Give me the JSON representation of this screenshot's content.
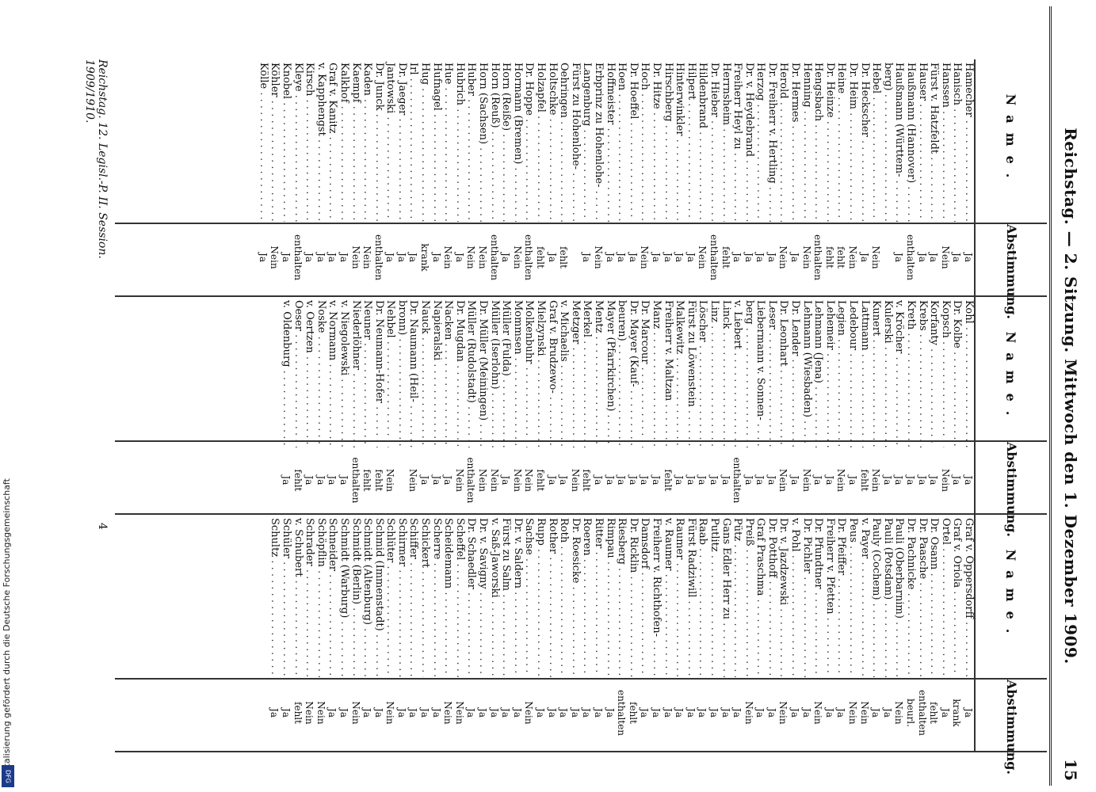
{
  "header": {
    "title": "Reichstag. — 2. Sitzung. Mittwoch den 1. Dezember 1909.",
    "page_number": "15"
  },
  "columns": {
    "name_header": "Name.",
    "vote_header": "Abstimmung."
  },
  "col1": [
    {
      "name": "Hamecher",
      "vote": "Ja"
    },
    {
      "name": "Hanisch",
      "vote": "Ja"
    },
    {
      "name": "Hanssen",
      "vote": "Nein"
    },
    {
      "name": "Fürst v. Hatzfeldt",
      "vote": "Ja"
    },
    {
      "name": "Hauser",
      "vote": "Ja"
    },
    {
      "name": "Haußmann (Hannover)",
      "vote": "enthalten"
    },
    {
      "name": "Haußmann (Württem-",
      "vote": "Ja"
    },
    {
      "name": "berg)",
      "vote": ""
    },
    {
      "name": "Hebel",
      "vote": "Nein"
    },
    {
      "name": "Dr. Heckscher",
      "vote": "Ja"
    },
    {
      "name": "Dr. Heim",
      "vote": "Nein"
    },
    {
      "name": "Heine",
      "vote": "fehlt"
    },
    {
      "name": "Dr. Heinze",
      "vote": "fehlt"
    },
    {
      "name": "Hengsbach",
      "vote": "enthalten"
    },
    {
      "name": "Henning",
      "vote": "Nein"
    },
    {
      "name": "Dr. Hermes",
      "vote": "Ja"
    },
    {
      "name": "Herold",
      "vote": "Nein"
    },
    {
      "name": "Dr. Freiherr v. Hertling",
      "vote": "Ja"
    },
    {
      "name": "Herzog",
      "vote": "Ja"
    },
    {
      "name": "Dr. v. Heydebrand",
      "vote": "Ja"
    },
    {
      "name": "Freiherr Heyl zu",
      "vote": "Ja"
    },
    {
      "name": "Herrnsheim",
      "vote": "fehlt"
    },
    {
      "name": "Dr. Hieber",
      "vote": "enthalten"
    },
    {
      "name": "Hildenbrand",
      "vote": "Nein"
    },
    {
      "name": "Hilpert",
      "vote": "Ja"
    },
    {
      "name": "Hinterwinkler",
      "vote": "Ja"
    },
    {
      "name": "Hirschberg",
      "vote": "Ja"
    },
    {
      "name": "Dr. Hitze",
      "vote": "Ja"
    },
    {
      "name": "Hoch",
      "vote": "Nein"
    },
    {
      "name": "Dr. Hoeffel",
      "vote": "Ja"
    },
    {
      "name": "Hoen",
      "vote": "Ja"
    },
    {
      "name": "Hoffmeister",
      "vote": "Ja"
    },
    {
      "name": "Erbprinz zu Hohenlohe-",
      "vote": "Nein"
    },
    {
      "name": "Langenburg",
      "vote": "Ja"
    },
    {
      "name": "Fürst zu Hohenlohe-",
      "vote": ""
    },
    {
      "name": "Oehringen",
      "vote": "fehlt"
    },
    {
      "name": "Holtschke",
      "vote": "Ja"
    },
    {
      "name": "Holzapfel",
      "vote": "fehlt"
    },
    {
      "name": "Dr. Hoppe",
      "vote": "enthalten"
    },
    {
      "name": "Hormann (Bremen)",
      "vote": "Nein"
    },
    {
      "name": "Horn (Reiße)",
      "vote": "Ja"
    },
    {
      "name": "Horn (Reuß)",
      "vote": "enthalten"
    },
    {
      "name": "Horn (Sachsen)",
      "vote": "Nein"
    },
    {
      "name": "Huber",
      "vote": "Nein"
    },
    {
      "name": "Hubrich",
      "vote": "Ja"
    },
    {
      "name": "Hue",
      "vote": "Nein"
    },
    {
      "name": "Hufnagel",
      "vote": "Ja"
    },
    {
      "name": "Hug",
      "vote": "krank"
    },
    {
      "name": "Irl",
      "vote": "Ja"
    },
    {
      "name": "Dr. Jaeger",
      "vote": "Ja"
    },
    {
      "name": "Jantowski",
      "vote": "Ja"
    },
    {
      "name": "Dr. Junck",
      "vote": "enthalten"
    },
    {
      "name": "Kaden",
      "vote": "Nein"
    },
    {
      "name": "Kaempf",
      "vote": "Nein"
    },
    {
      "name": "Kalkhof",
      "vote": "Ja"
    },
    {
      "name": "Graf v. Kanitz",
      "vote": "Ja"
    },
    {
      "name": "v. Kapphengst",
      "vote": "Ja"
    },
    {
      "name": "Kirsch",
      "vote": "Ja"
    },
    {
      "name": "Kleye",
      "vote": "enthalten"
    },
    {
      "name": "Knobel",
      "vote": "Ja"
    },
    {
      "name": "Köhler",
      "vote": "Nein"
    },
    {
      "name": "Kölle",
      "vote": "Ja"
    }
  ],
  "col2": [
    {
      "name": "Kohl",
      "vote": "Ja"
    },
    {
      "name": "Dr. Kolbe",
      "vote": "Ja"
    },
    {
      "name": "Kopsch",
      "vote": "Nein"
    },
    {
      "name": "Korfanty",
      "vote": "Ja"
    },
    {
      "name": "Krebs",
      "vote": "Ja"
    },
    {
      "name": "Kreth",
      "vote": "Ja"
    },
    {
      "name": "v. Kröcher",
      "vote": "Ja"
    },
    {
      "name": "Kulerski",
      "vote": "Ja"
    },
    {
      "name": "Kunert",
      "vote": "Nein"
    },
    {
      "name": "Lattmann",
      "vote": "fehlt"
    },
    {
      "name": "Ledebour",
      "vote": "Ja"
    },
    {
      "name": "Legien",
      "vote": "Nein"
    },
    {
      "name": "Lehemeir",
      "vote": "Ja"
    },
    {
      "name": "Lehmann (Jena)",
      "vote": "Ja"
    },
    {
      "name": "Lehmann (Wiesbaden)",
      "vote": "Nein"
    },
    {
      "name": "Dr. Lender",
      "vote": "Ja"
    },
    {
      "name": "Dr. Leonhart",
      "vote": "Nein"
    },
    {
      "name": "Leser",
      "vote": "Ja"
    },
    {
      "name": "Liebermann v. Sonnen-",
      "vote": "Ja"
    },
    {
      "name": "berg",
      "vote": "Ja"
    },
    {
      "name": "v. Liebert",
      "vote": "enthalten"
    },
    {
      "name": "Linck",
      "vote": "Ja"
    },
    {
      "name": "Linz",
      "vote": "Ja"
    },
    {
      "name": "Löscher",
      "vote": "Ja"
    },
    {
      "name": "Fürst zu Löwenstein",
      "vote": "Ja"
    },
    {
      "name": "Malkewitz",
      "vote": "Ja"
    },
    {
      "name": "Freiherr v. Maltzan",
      "vote": "fehlt"
    },
    {
      "name": "Manz",
      "vote": "Ja"
    },
    {
      "name": "Dr. Marcour",
      "vote": "Ja"
    },
    {
      "name": "Dr. Mayer (Kauf-",
      "vote": "Ja"
    },
    {
      "name": "beuren)",
      "vote": "Ja"
    },
    {
      "name": "Mayer (Pfarrkirchen)",
      "vote": "Ja"
    },
    {
      "name": "Mentz",
      "vote": "Ja"
    },
    {
      "name": "Merkel",
      "vote": "fehlt"
    },
    {
      "name": "Metzger",
      "vote": "Nein"
    },
    {
      "name": "v. Michaelis",
      "vote": "Ja"
    },
    {
      "name": "Graf v. Brudzewo-",
      "vote": "Ja"
    },
    {
      "name": "Mielzynski",
      "vote": "fehlt"
    },
    {
      "name": "Molkenbuhr",
      "vote": "Nein"
    },
    {
      "name": "Mommsen",
      "vote": "Nein"
    },
    {
      "name": "Müller (Fulda)",
      "vote": "Ja"
    },
    {
      "name": "Müller (Iserlohn)",
      "vote": "Nein"
    },
    {
      "name": "Dr. Müller (Meiningen)",
      "vote": "Nein"
    },
    {
      "name": "Müller (Rudolstadt)",
      "vote": "enthalten"
    },
    {
      "name": "Dr. Mugdan",
      "vote": "Nein"
    },
    {
      "name": "Nacken",
      "vote": "Ja"
    },
    {
      "name": "Napieralski",
      "vote": "Ja"
    },
    {
      "name": "Nauck",
      "vote": "Ja"
    },
    {
      "name": "Dr. Naumann (Heil-",
      "vote": "Nein"
    },
    {
      "name": "bronn)",
      "vote": ""
    },
    {
      "name": "Nehbel",
      "vote": "Nein"
    },
    {
      "name": "Dr. Neumann-Hofer",
      "vote": "fehlt"
    },
    {
      "name": "Neuner",
      "vote": "fehlt"
    },
    {
      "name": "Niederlöhner",
      "vote": "enthalten"
    },
    {
      "name": "v. Niegolewski",
      "vote": "Ja"
    },
    {
      "name": "v. Normann",
      "vote": "Ja"
    },
    {
      "name": "Noske",
      "vote": "Ja"
    },
    {
      "name": "v. Oertzen",
      "vote": "Ja"
    },
    {
      "name": "Oeser",
      "vote": "fehlt"
    },
    {
      "name": "v. Oldenburg",
      "vote": "Ja"
    }
  ],
  "col3": [
    {
      "name": "Graf v. Oppersdorff",
      "vote": "Ja"
    },
    {
      "name": "Graf v. Oriola",
      "vote": "krank"
    },
    {
      "name": "Ortel",
      "vote": "Ja"
    },
    {
      "name": "Dr. Osann",
      "vote": "fehlt"
    },
    {
      "name": "Dr. Paasche",
      "vote": "enthalten"
    },
    {
      "name": "Dr. Pachnicke",
      "vote": "beurl."
    },
    {
      "name": "Pauli (Oberbarnim)",
      "vote": "Nein"
    },
    {
      "name": "Pauli (Potsdam)",
      "vote": "Ja"
    },
    {
      "name": "Pauly (Cochem)",
      "vote": "Ja"
    },
    {
      "name": "v. Payer",
      "vote": "Nein"
    },
    {
      "name": "Peus",
      "vote": "Nein"
    },
    {
      "name": "Dr. Pfeiffer",
      "vote": "Ja"
    },
    {
      "name": "Freiherr v. Pfetten",
      "vote": "Ja"
    },
    {
      "name": "Dr. Pfundtner",
      "vote": "Nein"
    },
    {
      "name": "Dr. Pichler",
      "vote": "Ja"
    },
    {
      "name": "v. Pohl",
      "vote": "Ja"
    },
    {
      "name": "Dr. v. Jazdzewski",
      "vote": "Nein"
    },
    {
      "name": "Dr. Potthoff",
      "vote": "Ja"
    },
    {
      "name": "Graf Praschma",
      "vote": "Ja"
    },
    {
      "name": "Preiß",
      "vote": "Nein"
    },
    {
      "name": "Pütz",
      "vote": "Ja"
    },
    {
      "name": "Gans Edler Herr zu",
      "vote": "Ja"
    },
    {
      "name": "Putlitz",
      "vote": "Ja"
    },
    {
      "name": "Raab",
      "vote": "Ja"
    },
    {
      "name": "Fürst Radziwill",
      "vote": "Ja"
    },
    {
      "name": "Raumer",
      "vote": "Ja"
    },
    {
      "name": "v. Raumer",
      "vote": "Ja"
    },
    {
      "name": "Freiherr v. Richthofen-",
      "vote": "Ja"
    },
    {
      "name": "Damsdorf",
      "vote": "Ja"
    },
    {
      "name": "Dr. Ricklin",
      "vote": "fehlt"
    },
    {
      "name": "Riesberg",
      "vote": "enthalten"
    },
    {
      "name": "Rimpau",
      "vote": "Ja"
    },
    {
      "name": "Ritter",
      "vote": "Ja"
    },
    {
      "name": "Roeren",
      "vote": "Ja"
    },
    {
      "name": "Dr. Roesicke",
      "vote": "Ja"
    },
    {
      "name": "Roth",
      "vote": "Ja"
    },
    {
      "name": "Rother",
      "vote": "Ja"
    },
    {
      "name": "Rupp",
      "vote": "Ja"
    },
    {
      "name": "Sachse",
      "vote": "Nein"
    },
    {
      "name": "Dr. v. Saldern",
      "vote": "Ja"
    },
    {
      "name": "Fürst zu Salm",
      "vote": "Ja"
    },
    {
      "name": "v. Saß-Jaworski",
      "vote": "Ja"
    },
    {
      "name": "Dr. v. Savigny",
      "vote": "Ja"
    },
    {
      "name": "Dr. Schaedler",
      "vote": "Ja"
    },
    {
      "name": "Scheffel",
      "vote": "Nein"
    },
    {
      "name": "Scheidemann",
      "vote": "Nein"
    },
    {
      "name": "Scherre",
      "vote": "Ja"
    },
    {
      "name": "Schickert",
      "vote": "Ja"
    },
    {
      "name": "Schiffer",
      "vote": "Ja"
    },
    {
      "name": "Schirmer",
      "vote": "Ja"
    },
    {
      "name": "Schlüter",
      "vote": "Nein"
    },
    {
      "name": "Schmid (Immenstadt)",
      "vote": "Ja"
    },
    {
      "name": "Schmidt (Altenburg)",
      "vote": "Ja"
    },
    {
      "name": "Schmidt (Berlin)",
      "vote": "Nein"
    },
    {
      "name": "Schmidt (Warburg)",
      "vote": "Ja"
    },
    {
      "name": "Schneider",
      "vote": "Ja"
    },
    {
      "name": "Schöpflin",
      "vote": "Nein"
    },
    {
      "name": "Schrader",
      "vote": "Nein"
    },
    {
      "name": "v. Schubert",
      "vote": "fehlt"
    },
    {
      "name": "Schüler",
      "vote": "Ja"
    },
    {
      "name": "Schultz",
      "vote": "Ja"
    }
  ],
  "footer": {
    "left": "Reichstag. 12. Legisl.-P. II. Session. 1909/1910.",
    "sheet_mark": "4"
  },
  "sidebar": {
    "text": "Digitalisierung gefördert durch die Deutsche Forschungsgemeinschaft",
    "logo": "DFG"
  }
}
